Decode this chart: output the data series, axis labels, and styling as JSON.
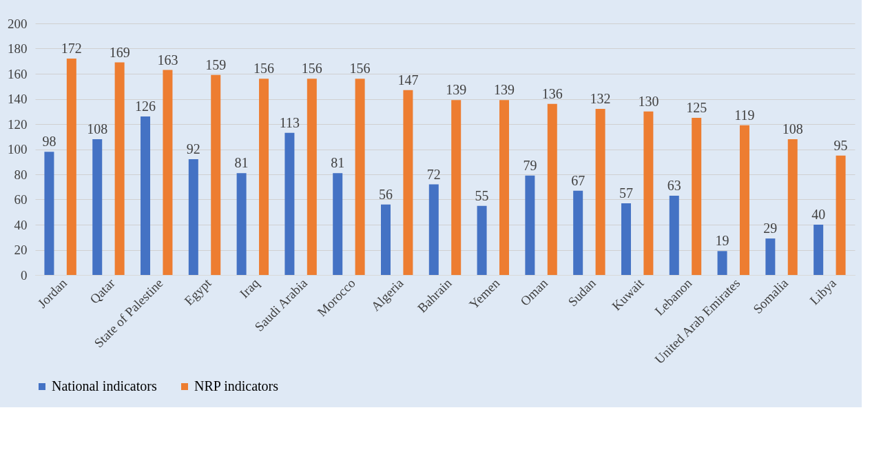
{
  "chart_data": {
    "type": "bar",
    "categories": [
      "Jordan",
      "Qatar",
      "State of Palestine",
      "Egypt",
      "Iraq",
      "Saudi Arabia",
      "Morocco",
      "Algeria",
      "Bahrain",
      "Yemen",
      "Oman",
      "Sudan",
      "Kuwait",
      "Lebanon",
      "United Arab Emirates",
      "Somalia",
      "Libya"
    ],
    "series": [
      {
        "name": "National indicators",
        "color": "#4472c4",
        "values": [
          98,
          108,
          126,
          92,
          81,
          113,
          81,
          56,
          72,
          55,
          79,
          67,
          57,
          63,
          19,
          29,
          40
        ]
      },
      {
        "name": "NRP indicators",
        "color": "#ed7d31",
        "values": [
          172,
          169,
          163,
          159,
          156,
          156,
          156,
          147,
          139,
          139,
          136,
          132,
          130,
          125,
          119,
          108,
          95
        ]
      }
    ],
    "ylim": [
      0,
      200
    ],
    "yticks": [
      0,
      20,
      40,
      60,
      80,
      100,
      120,
      140,
      160,
      180,
      200
    ],
    "grid": "y",
    "legend": "bottom",
    "data_labels": true
  }
}
